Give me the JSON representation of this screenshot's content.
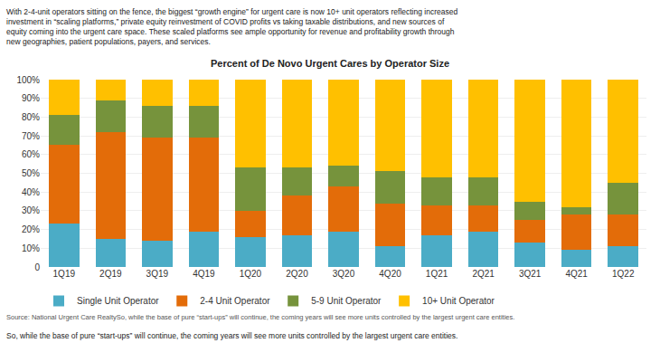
{
  "chart_data": {
    "type": "bar",
    "stacked": true,
    "title": "Percent of De Novo Urgent Cares by Operator Size",
    "subtitle": "With 2-4-unit operators sitting on the fence, the biggest “growth engine” for urgent care is now 10+ unit operators reflecting increased\ninvestment in “scaling platforms,” private equity reinvestment of COVID profits vs taking taxable distributions, and new sources of\nequity coming into the urgent care space. These scaled platforms see ample opportunity for revenue and profitability growth through\nnew geographies, patient populations, payers, and services.",
    "annotations": [
      "Source: National Urgent Care RealtySo, while the base of pure “start-ups” will continue, the coming years will see more units controlled by the largest urgent care entities.",
      "So, while the base of pure “start-ups” will continue, the coming years will see more units controlled by the largest urgent care entities."
    ],
    "categories": [
      "1Q19",
      "2Q19",
      "3Q19",
      "4Q19",
      "1Q20",
      "2Q20",
      "3Q20",
      "4Q20",
      "1Q21",
      "2Q21",
      "3Q21",
      "4Q21",
      "1Q22"
    ],
    "series": [
      {
        "name": "Single Unit Operator",
        "color": "#4BACC6",
        "values": [
          23,
          15,
          14,
          19,
          16,
          17,
          19,
          11,
          17,
          19,
          13,
          9,
          11
        ]
      },
      {
        "name": "2-4 Unit Operator",
        "color": "#E36C09",
        "values": [
          42,
          57,
          55,
          50,
          14,
          21,
          24,
          23,
          16,
          14,
          12,
          19,
          17
        ]
      },
      {
        "name": "5-9 Unit Operator",
        "color": "#76933C",
        "values": [
          16,
          17,
          17,
          17,
          23,
          15,
          11,
          17,
          15,
          15,
          10,
          4,
          17
        ]
      },
      {
        "name": "10+ Unit Operator",
        "color": "#FFC000",
        "values": [
          19,
          11,
          14,
          14,
          47,
          47,
          46,
          49,
          52,
          52,
          65,
          68,
          55
        ]
      }
    ],
    "ylim": [
      0,
      100
    ],
    "yticks": [
      0,
      {
        "value": 10,
        "label": "10%"
      },
      {
        "value": 20,
        "label": "20%"
      },
      {
        "value": 30,
        "label": "30%"
      },
      {
        "value": 40,
        "label": "40%"
      },
      {
        "value": 50,
        "label": "50%"
      },
      {
        "value": 60,
        "label": "60%"
      },
      {
        "value": 70,
        "label": "70%"
      },
      {
        "value": 80,
        "label": "80%"
      },
      {
        "value": 90,
        "label": "90%"
      },
      {
        "value": 100,
        "label": "100%"
      }
    ],
    "grid": true,
    "legend": "bottom"
  }
}
